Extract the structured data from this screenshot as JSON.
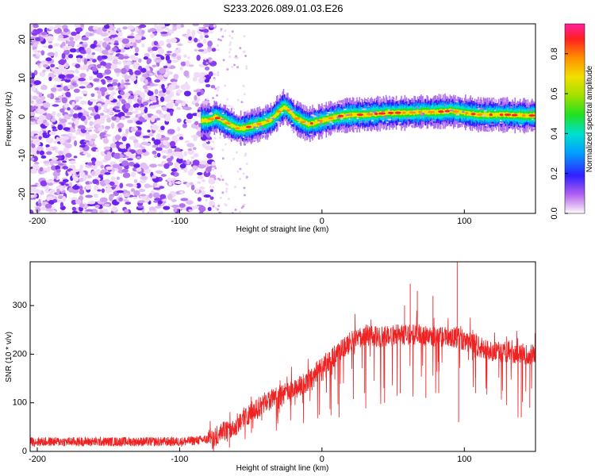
{
  "title": "S233.2026.089.01.03.E26",
  "chart_data": [
    {
      "type": "heatmap",
      "title": "S233.2026.089.01.03.E26",
      "xlabel": "Height of straight line (km)",
      "ylabel": "Frequency (Hz)",
      "xlim": [
        -205,
        150
      ],
      "ylim": [
        -25,
        24
      ],
      "xticks": [
        -200,
        -100,
        0,
        100
      ],
      "yticks": [
        -20,
        -10,
        0,
        10,
        20
      ],
      "description_of_field": "noise scatter for heights < -80 km; narrow high-amplitude Doppler ridge near 0 Hz from -85 km to 150 km",
      "ridge": {
        "x": [
          -85,
          -80,
          -75,
          -70,
          -65,
          -60,
          -55,
          -50,
          -45,
          -40,
          -35,
          -30,
          -27,
          -25,
          -22,
          -20,
          -15,
          -10,
          -5,
          0,
          5,
          10,
          20,
          30,
          40,
          50,
          60,
          70,
          80,
          90,
          100,
          110,
          120,
          130,
          140,
          150
        ],
        "y": [
          -1,
          -1,
          0,
          -1,
          -2,
          -3,
          -3,
          -2.5,
          -2,
          -1.5,
          -0.5,
          1.5,
          2.5,
          2,
          1,
          0,
          -1,
          -2,
          -1.5,
          -1,
          -0.5,
          0,
          0.5,
          0.5,
          0.8,
          1,
          1,
          1.2,
          1.2,
          1.5,
          1,
          0.5,
          0.5,
          0.5,
          0.3,
          0.3
        ]
      },
      "colorbar": {
        "label": "Normalized spectral amplitude",
        "range": [
          0,
          0.95
        ],
        "ticks": [
          0.0,
          0.2,
          0.4,
          0.6,
          0.8
        ],
        "tick_labels": [
          "0.0",
          "0.2",
          "0.4",
          "0.6",
          "0.8"
        ]
      }
    },
    {
      "type": "line",
      "xlabel": "Height of straight line (km)",
      "ylabel": "SNR (10 * v/v)",
      "xlim": [
        -205,
        150
      ],
      "ylim": [
        0,
        390
      ],
      "xticks": [
        -200,
        -100,
        0,
        100
      ],
      "yticks": [
        0,
        100,
        200,
        300
      ],
      "color": "#ee2222",
      "envelope": {
        "x": [
          -205,
          -180,
          -150,
          -120,
          -100,
          -90,
          -80,
          -75,
          -70,
          -65,
          -60,
          -55,
          -50,
          -40,
          -30,
          -20,
          -10,
          0,
          10,
          20,
          30,
          40,
          50,
          60,
          70,
          80,
          90,
          100,
          110,
          120,
          130,
          140,
          150
        ],
        "y": [
          20,
          20,
          20,
          20,
          20,
          22,
          25,
          30,
          45,
          40,
          55,
          70,
          80,
          100,
          115,
          125,
          145,
          175,
          200,
          225,
          240,
          235,
          240,
          240,
          240,
          235,
          235,
          230,
          215,
          205,
          205,
          200,
          200
        ]
      },
      "noise_amplitude": 12,
      "spikes": [
        {
          "x": 95,
          "y": 390
        },
        {
          "x": 62,
          "y": 345
        },
        {
          "x": 67,
          "y": 330
        },
        {
          "x": 58,
          "y": 300
        },
        {
          "x": 78,
          "y": 320
        },
        {
          "x": 73,
          "y": 110
        },
        {
          "x": 96,
          "y": 60
        },
        {
          "x": 12,
          "y": 70
        },
        {
          "x": 30,
          "y": 120
        },
        {
          "x": 44,
          "y": 100
        },
        {
          "x": 55,
          "y": 120
        },
        {
          "x": 82,
          "y": 120
        },
        {
          "x": 108,
          "y": 120
        },
        {
          "x": 140,
          "y": 70
        },
        {
          "x": 146,
          "y": 90
        },
        {
          "x": 150,
          "y": 130
        },
        {
          "x": -65,
          "y": 8
        }
      ]
    }
  ]
}
